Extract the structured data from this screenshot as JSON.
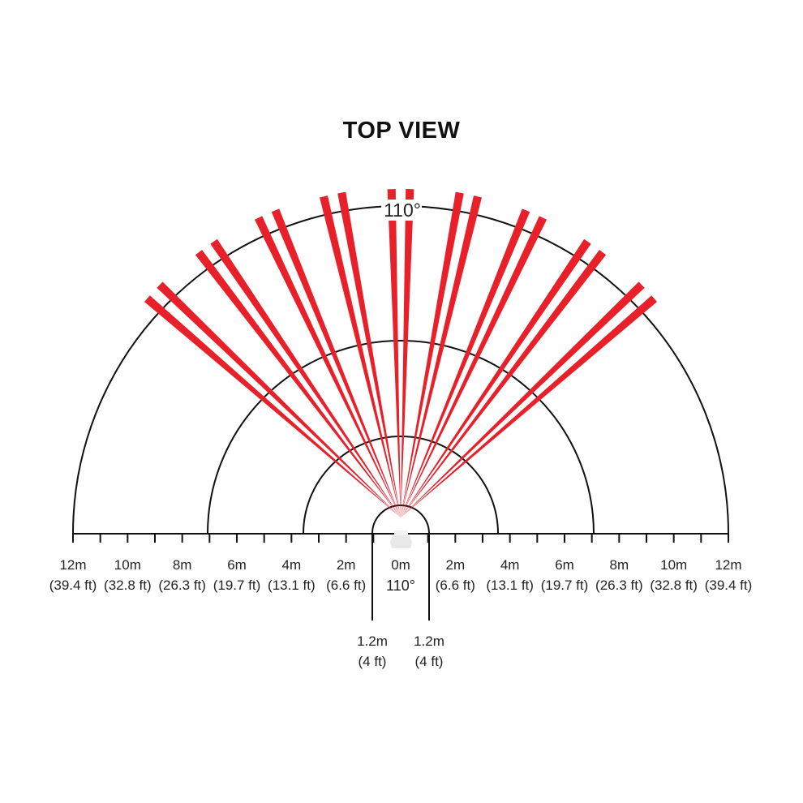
{
  "title": "TOP VIEW",
  "arc_angle_label": "110°",
  "center_angle_label": "110°",
  "beam_color": "#e8202a",
  "axis": {
    "left_labels": [
      {
        "m": "12m",
        "ft": "(39.4 ft)"
      },
      {
        "m": "10m",
        "ft": "(32.8 ft)"
      },
      {
        "m": "8m",
        "ft": "(26.3 ft)"
      },
      {
        "m": "6m",
        "ft": "(19.7 ft)"
      },
      {
        "m": "4m",
        "ft": "(13.1 ft)"
      },
      {
        "m": "2m",
        "ft": "(6.6 ft)"
      }
    ],
    "center_label": "0m",
    "right_labels": [
      {
        "m": "2m",
        "ft": "(6.6 ft)"
      },
      {
        "m": "4m",
        "ft": "(13.1 ft)"
      },
      {
        "m": "6m",
        "ft": "(19.7 ft)"
      },
      {
        "m": "8m",
        "ft": "(26.3 ft)"
      },
      {
        "m": "10m",
        "ft": "(32.8 ft)"
      },
      {
        "m": "12m",
        "ft": "(39.4 ft)"
      }
    ]
  },
  "near_zone": {
    "left": {
      "m": "1.2m",
      "ft": "(4 ft)"
    },
    "right": {
      "m": "1.2m",
      "ft": "(4 ft)"
    }
  }
}
